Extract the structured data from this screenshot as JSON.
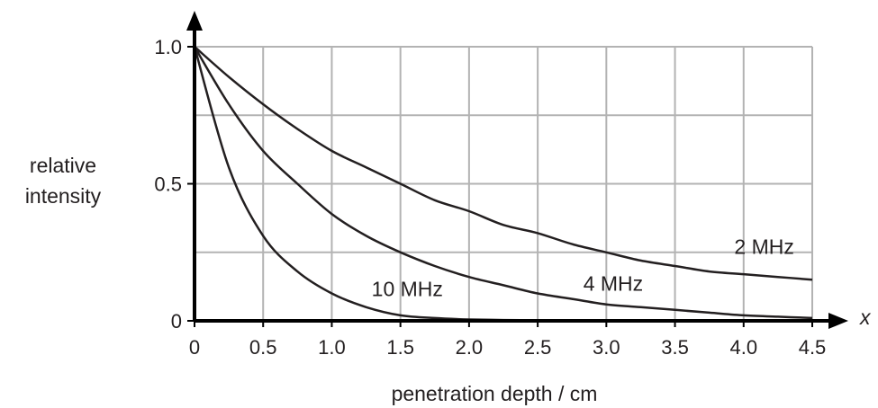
{
  "chart_data": {
    "type": "line",
    "title": "",
    "xlabel": "penetration depth / cm",
    "ylabel": [
      "relative",
      "intensity"
    ],
    "x_axis_variable": "x",
    "xlim": [
      0,
      4.5
    ],
    "ylim": [
      0,
      1.0
    ],
    "x_ticks": [
      "0",
      "0.5",
      "1.0",
      "1.5",
      "2.0",
      "2.5",
      "3.0",
      "3.5",
      "4.0",
      "4.5"
    ],
    "y_ticks": [
      "0",
      "0.5",
      "1.0"
    ],
    "grid": true,
    "x": [
      0,
      0.25,
      0.5,
      0.75,
      1.0,
      1.25,
      1.5,
      1.75,
      2.0,
      2.25,
      2.5,
      2.75,
      3.0,
      3.25,
      3.5,
      3.75,
      4.0,
      4.25,
      4.5
    ],
    "series": [
      {
        "name": "2 MHz",
        "values": [
          1.0,
          0.89,
          0.79,
          0.7,
          0.62,
          0.56,
          0.5,
          0.44,
          0.4,
          0.35,
          0.32,
          0.28,
          0.25,
          0.22,
          0.2,
          0.18,
          0.17,
          0.16,
          0.15
        ]
      },
      {
        "name": "4 MHz",
        "values": [
          1.0,
          0.79,
          0.62,
          0.5,
          0.39,
          0.31,
          0.25,
          0.2,
          0.16,
          0.13,
          0.1,
          0.08,
          0.06,
          0.05,
          0.04,
          0.03,
          0.02,
          0.015,
          0.01
        ]
      },
      {
        "name": "10 MHz",
        "values": [
          1.0,
          0.56,
          0.31,
          0.18,
          0.1,
          0.05,
          0.02,
          0.01,
          0.005,
          0.003,
          0.002,
          0.001,
          0.0,
          0.0,
          0.0,
          0.0,
          0.0,
          0.0,
          0.0
        ]
      }
    ],
    "series_label_positions": [
      {
        "name": "2 MHz",
        "x": 4.15,
        "y": 0.245
      },
      {
        "name": "4 MHz",
        "x": 3.05,
        "y": 0.11
      },
      {
        "name": "10 MHz",
        "x": 1.55,
        "y": 0.09
      }
    ],
    "colors": {
      "grid": "#b3b3b3",
      "axis": "#000000",
      "line": "#231f20"
    }
  }
}
